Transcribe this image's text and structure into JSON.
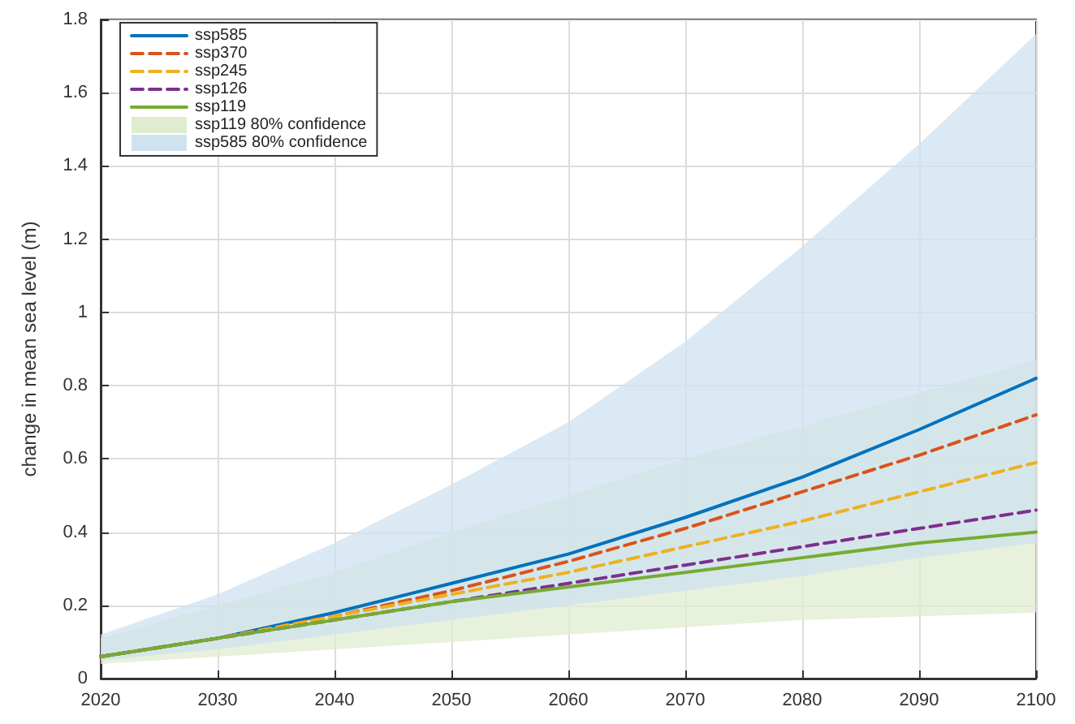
{
  "chart_data": {
    "type": "line",
    "ylabel": "change in mean sea level (m)",
    "x": [
      2020,
      2030,
      2040,
      2050,
      2060,
      2070,
      2080,
      2090,
      2100
    ],
    "xlim": [
      2020,
      2100
    ],
    "xticks": [
      2020,
      2030,
      2040,
      2050,
      2060,
      2070,
      2080,
      2090,
      2100
    ],
    "ylim": [
      0,
      1.8
    ],
    "yticks": [
      0,
      0.2,
      0.4,
      0.6,
      0.8,
      1,
      1.2,
      1.4,
      1.6,
      1.8
    ],
    "grid": true,
    "legend": "top left",
    "marker": "none",
    "series": [
      {
        "name": "ssp585",
        "color": "#0072bd",
        "line_style": "solid",
        "values": [
          0.06,
          0.11,
          0.18,
          0.26,
          0.34,
          0.44,
          0.55,
          0.68,
          0.82
        ]
      },
      {
        "name": "ssp370",
        "color": "#d95319",
        "line_style": "dashed",
        "values": [
          0.06,
          0.11,
          0.17,
          0.24,
          0.32,
          0.41,
          0.51,
          0.61,
          0.72
        ]
      },
      {
        "name": "ssp245",
        "color": "#edb120",
        "line_style": "dashed",
        "values": [
          0.06,
          0.11,
          0.17,
          0.23,
          0.29,
          0.36,
          0.43,
          0.51,
          0.59
        ]
      },
      {
        "name": "ssp126",
        "color": "#7e2f8e",
        "line_style": "dashed",
        "values": [
          0.06,
          0.11,
          0.16,
          0.21,
          0.26,
          0.31,
          0.36,
          0.41,
          0.46
        ]
      },
      {
        "name": "ssp119",
        "color": "#77ac30",
        "line_style": "solid",
        "values": [
          0.06,
          0.11,
          0.16,
          0.21,
          0.25,
          0.29,
          0.33,
          0.37,
          0.4
        ]
      },
      {
        "name": "ssp119 80% confidence",
        "color": "#dfeccf",
        "values": [
          null,
          null,
          null,
          null,
          null,
          null,
          null,
          null,
          null
        ],
        "lower": [
          0.04,
          0.06,
          0.08,
          0.1,
          0.12,
          0.14,
          0.16,
          0.17,
          0.18
        ],
        "upper": [
          0.11,
          0.2,
          0.29,
          0.4,
          0.5,
          0.6,
          0.69,
          0.78,
          0.87
        ]
      },
      {
        "name": "ssp585 80% confidence",
        "color": "#cfe2f0",
        "values": [
          null,
          null,
          null,
          null,
          null,
          null,
          null,
          null,
          null
        ],
        "lower": [
          0.05,
          0.08,
          0.12,
          0.16,
          0.2,
          0.24,
          0.28,
          0.33,
          0.37
        ],
        "upper": [
          0.12,
          0.23,
          0.37,
          0.53,
          0.7,
          0.92,
          1.18,
          1.46,
          1.76
        ]
      }
    ]
  }
}
